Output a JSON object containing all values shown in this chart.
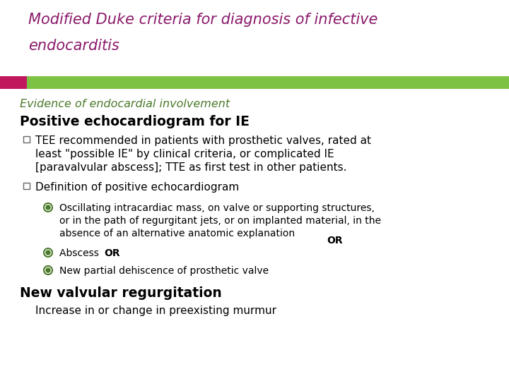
{
  "title_line1": "Modified Duke criteria for diagnosis of infective",
  "title_line2": "endocarditis",
  "title_color": "#8B1A6B",
  "title_fontsize": 15,
  "title_style": "italic",
  "bar_color_left": "#C0175D",
  "bar_color_right": "#7DC242",
  "section_label": "Evidence of endocardial involvement",
  "section_label_color": "#4A7A2A",
  "section_label_style": "italic",
  "section_label_fontsize": 11.5,
  "heading1": "Positive echocardiogram for IE",
  "heading1_fontsize": 13.5,
  "body_fontsize": 11,
  "body_color": "#000000",
  "bullet1": "TEE recommended in patients with prosthetic valves, rated at\nleast \"possible IE\" by clinical criteria, or complicated IE\n[paravalvular abscess]; TTE as first test in other patients.",
  "bullet2": "Definition of positive echocardiogram",
  "sub_bullet1": "Oscillating intracardiac mass, on valve or supporting structures,\nor in the path of regurgitant jets, or on implanted material, in the\nabsence of an alternative anatomic explanation ",
  "sub_bullet1_or": "OR",
  "sub_bullet2_plain": "Abscess ",
  "sub_bullet2_or": "OR",
  "sub_bullet3": "New partial dehiscence of prosthetic valve",
  "heading2": "New valvular regurgitation",
  "heading2_fontsize": 13.5,
  "last_line": "Increase in or change in preexisting murmur",
  "bg_color": "#FFFFFF",
  "sub_bullet_color": "#4A7A2A"
}
